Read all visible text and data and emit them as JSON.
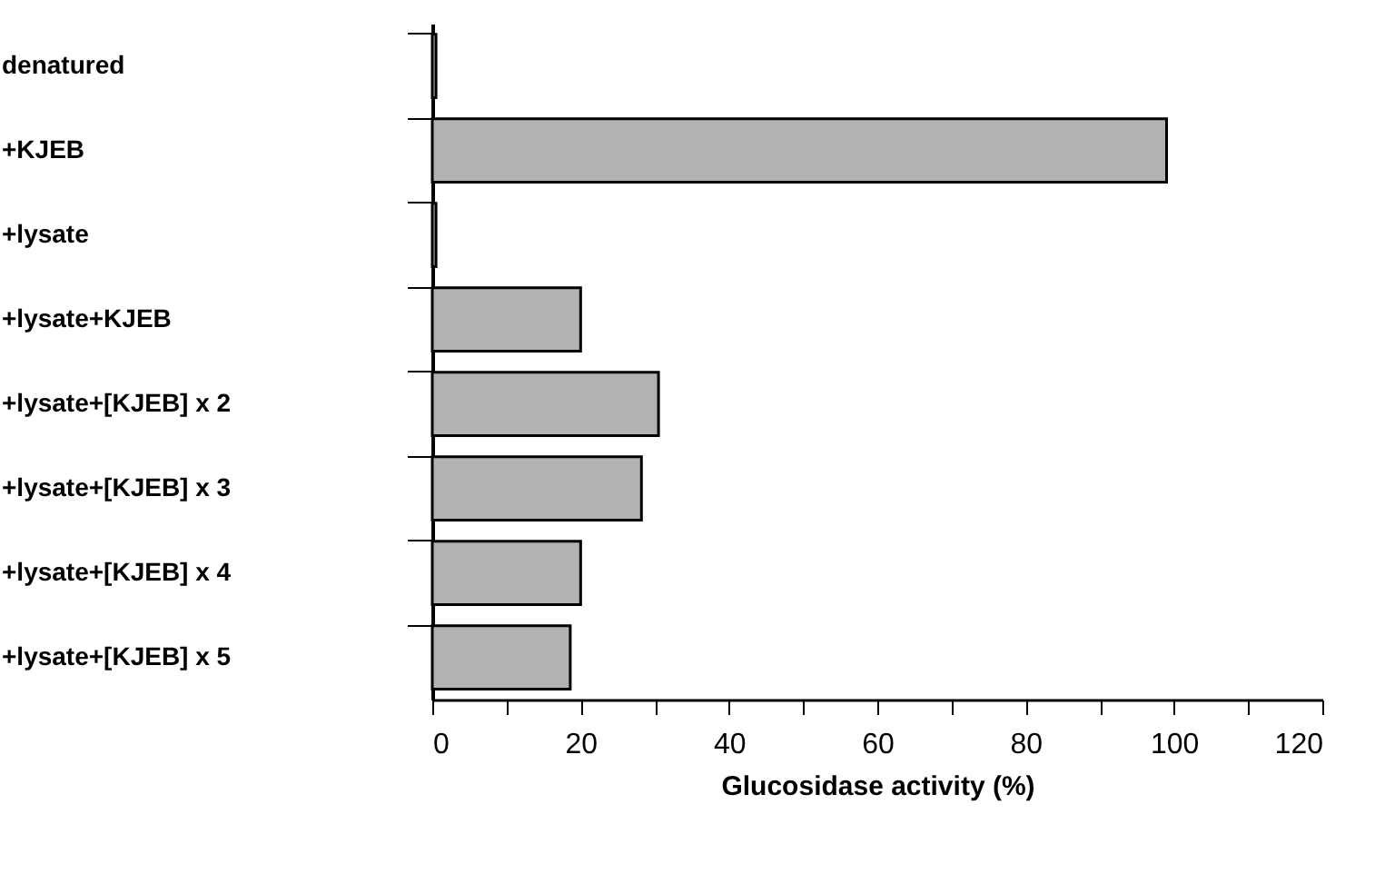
{
  "chart_data": {
    "type": "bar",
    "orientation": "horizontal",
    "xlabel": "Glucosidase activity (%)",
    "categories": [
      "denatured",
      "+KJEB",
      "+lysate",
      "+lysate+KJEB",
      "+lysate+[KJEB] x 2",
      "+lysate+[KJEB] x 3",
      "+lysate+[KJEB] x 4",
      "+lysate+[KJEB] x 5"
    ],
    "values": [
      0.5,
      99,
      0.5,
      20,
      30.5,
      28.2,
      20,
      18.6
    ],
    "color": "#b2b2b2",
    "xlim": [
      0,
      120
    ],
    "xticks": [
      0,
      {
        "value": 10,
        "label": null
      },
      20,
      {
        "value": 30,
        "label": null
      },
      40,
      {
        "value": 50,
        "label": null
      },
      60,
      {
        "value": 70,
        "label": null
      },
      80,
      {
        "value": 90,
        "label": null
      },
      100,
      {
        "value": 110,
        "label": null
      },
      120
    ],
    "grid": false
  }
}
